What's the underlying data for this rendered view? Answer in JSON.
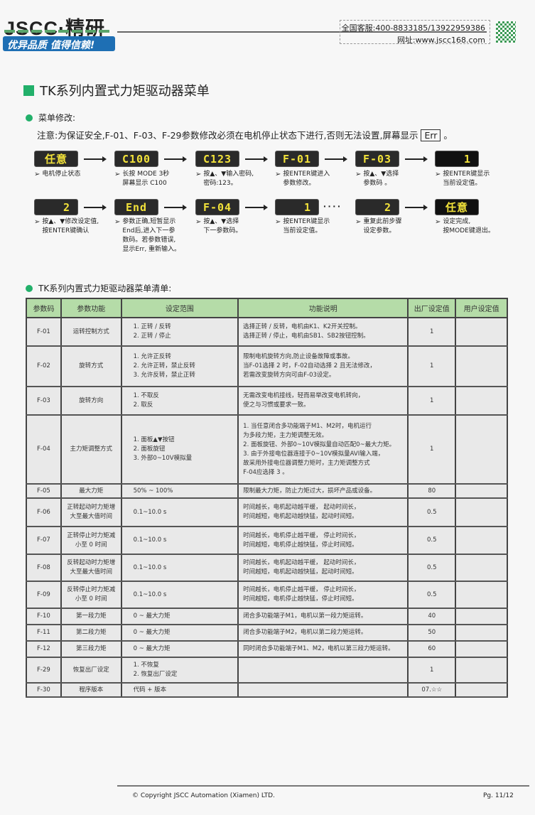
{
  "header": {
    "logo": "JSCC·精研",
    "slogan": "优异品质 值得信赖!",
    "hotline": "全国客服:400-8833185/13922959386",
    "website": "网址:www.jscc168.com"
  },
  "title": "TK系列内置式力矩驱动器菜单",
  "section1": {
    "heading": "菜单修改:",
    "note_prefix": "注意:为保证安全,F-01、F-03、F-29参数修改必须在电机停止状态下进行,否则无法设置,屏幕显示",
    "note_err": "Err",
    "note_suffix": "。"
  },
  "flow": {
    "row1": [
      {
        "display": "任意",
        "caption": "电机停止状态"
      },
      {
        "display": "C100",
        "caption": "长按 MODE 3秒\n屏幕显示 C100"
      },
      {
        "display": "C123",
        "caption": "按▲、▼输入密码,\n密码:123。"
      },
      {
        "display": "F-01",
        "caption": "按ENTER键进入\n参数修改。"
      },
      {
        "display": "F-03",
        "caption": "按▲、▼选择\n参数码 。"
      },
      {
        "display": "1",
        "caption": "按ENTER键显示\n当前设定值。"
      }
    ],
    "row2": [
      {
        "display": "2",
        "caption": "按▲、▼修改设定值,\n按ENTER键确认"
      },
      {
        "display": "End",
        "caption": "参数正确,短暂显示\nEnd后,进入下一参\n数码。若参数错误,\n显示Err, 重新输入。"
      },
      {
        "display": "F-04",
        "caption": "按▲、▼选择\n下一参数码。"
      },
      {
        "display": "1",
        "caption": "按ENTER键显示\n当前设定值。"
      },
      {
        "display": "2",
        "caption": "重复此前步骤\n设定参数。"
      },
      {
        "display": "任意",
        "caption": "设定完成,\n按MODE键退出。"
      }
    ],
    "ellipsis": "····"
  },
  "section2": {
    "heading": "TK系列内置式力矩驱动器菜单清单:"
  },
  "table": {
    "headers": [
      "参数码",
      "参数功能",
      "设定范围",
      "功能说明",
      "出厂设定值",
      "用户设定值"
    ],
    "rows": [
      {
        "code": "F-01",
        "func": "运转控制方式",
        "range": "1. 正转 / 反转\n2. 正转 / 停止",
        "desc": "选择正转 / 反转，电机由K1、K2开关控制。\n选择正转 / 停止，电机由SB1、SB2按钮控制。",
        "default": "1",
        "user": ""
      },
      {
        "code": "F-02",
        "func": "旋转方式",
        "range": "1. 允许正反转\n2. 允许正转，禁止反转\n3. 允许反转，禁止正转",
        "desc": "限制电机旋转方向,防止设备故障或事故。\n当F-01选择 2 时，F-02自动选择 2 且无法修改，\n若需改变旋转方向可由F-03设定。",
        "default": "1",
        "user": ""
      },
      {
        "code": "F-03",
        "func": "旋转方向",
        "range": "1. 不取反\n2. 取反",
        "desc": "无需改变电机接线，轻而易举改变电机转向，\n使之与习惯或要求一致。",
        "default": "1",
        "user": ""
      },
      {
        "code": "F-04",
        "func": "主力矩调整方式",
        "range": "1. 面板▲▼按钮\n2. 面板旋钮\n3. 外部0~10V模拟量",
        "desc": "1. 当任意闭合多功能端子M1、M2时，电机运行\n    为多段力矩，主力矩调整无效。\n2. 面板旋钮、外部0~10V模拟量自动匹配0~最大力矩。\n3. 由于外接电位器连接于0~10V模拟量AVI输入端，\n    故采用外接电位器调整力矩时，主力矩调整方式\n    F-04应选择 3 。",
        "default": "1",
        "user": ""
      },
      {
        "code": "F-05",
        "func": "最大力矩",
        "range": "50% ~ 100%",
        "desc": "限制最大力矩，防止力矩过大，损坏产品或设备。",
        "default": "80",
        "user": ""
      },
      {
        "code": "F-06",
        "func": "正转起动时力矩增\n大至最大值时间",
        "range": "0.1~10.0 s",
        "desc": "时间越长，电机起动越平缓，  起动时间长，\n时间越短，电机起动越快猛，起动时间短。",
        "default": "0.5",
        "user": ""
      },
      {
        "code": "F-07",
        "func": "正转停止时力矩减\n小至 0 时间",
        "range": "0.1~10.0 s",
        "desc": "时间越长，电机停止越平缓，  停止时间长，\n时间越短，电机停止越快猛，停止时间短。",
        "default": "0.5",
        "user": ""
      },
      {
        "code": "F-08",
        "func": "反转起动时力矩增\n大至最大值时间",
        "range": "0.1~10.0 s",
        "desc": "时间越长，电机起动越平缓，  起动时间长，\n时间越短，电机起动越快猛，起动时间短。",
        "default": "0.5",
        "user": ""
      },
      {
        "code": "F-09",
        "func": "反转停止时力矩减\n小至 0 时间",
        "range": "0.1~10.0 s",
        "desc": "时间越长，电机停止越平缓，  停止时间长，\n时间越短，电机停止越快猛，停止时间短。",
        "default": "0.5",
        "user": ""
      },
      {
        "code": "F-10",
        "func": "第一段力矩",
        "range": "0 ~ 最大力矩",
        "desc": "闭合多功能端子M1，电机以第一段力矩运转。",
        "default": "40",
        "user": ""
      },
      {
        "code": "F-11",
        "func": "第二段力矩",
        "range": "0 ~ 最大力矩",
        "desc": "闭合多功能端子M2，电机以第二段力矩运转。",
        "default": "50",
        "user": ""
      },
      {
        "code": "F-12",
        "func": "第三段力矩",
        "range": "0 ~ 最大力矩",
        "desc": "同时闭合多功能端子M1、M2，电机以第三段力矩运转。",
        "default": "60",
        "user": ""
      },
      {
        "code": "F-29",
        "func": "恢复出厂设定",
        "range": "1. 不恢复\n2. 恢复出厂设定",
        "desc": "",
        "default": "1",
        "user": ""
      },
      {
        "code": "F-30",
        "func": "程序版本",
        "range": "代码 + 版本",
        "desc": "",
        "default": "07.☆☆",
        "user": ""
      }
    ]
  },
  "footer": {
    "copyright": "© Copyright JSCC Automation (Xiamen) LTD.",
    "page": "Pg. 11/12"
  },
  "colors": {
    "accent_green": "#22b06a",
    "header_green": "#b5dca8",
    "brand_blue": "#1e6fb4",
    "display_yellow": "#f2e23a"
  }
}
